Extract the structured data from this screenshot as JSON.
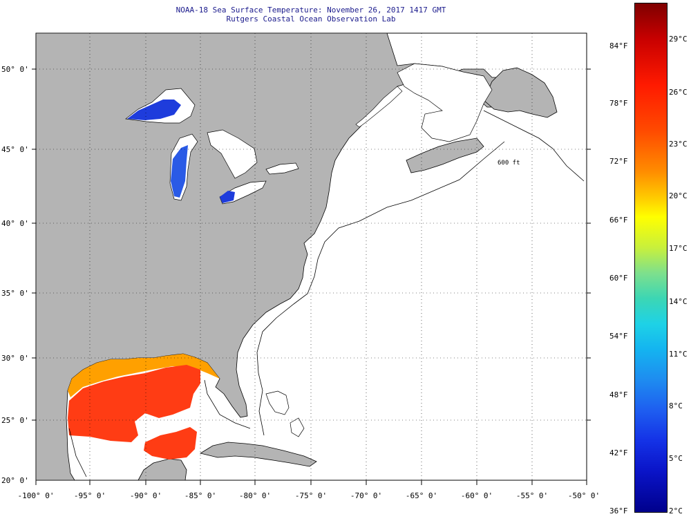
{
  "title": {
    "line1": "NOAA-18 Sea Surface Temperature:  November 26, 2017 1417 GMT",
    "line2": "Rutgers Coastal Ocean Observation Lab"
  },
  "lat_labels": [
    "50° 0'",
    "45° 0'",
    "40° 0'",
    "35° 0'",
    "30° 0'",
    "25° 0'",
    "20° 0'"
  ],
  "lon_labels": [
    "-100° 0'",
    "-95° 0'",
    "-90° 0'",
    "-85° 0'",
    "-80° 0'",
    "-75° 0'",
    "-70° 0'",
    "-65° 0'",
    "-60° 0'",
    "-55° 0'",
    "-50° 0'"
  ],
  "colorbar": {
    "fahrenheit": [
      "84°F",
      "78°F",
      "72°F",
      "66°F",
      "60°F",
      "54°F",
      "48°F",
      "42°F",
      "36°F"
    ],
    "celsius": [
      "29°C",
      "26°C",
      "23°C",
      "20°C",
      "17°C",
      "14°C",
      "11°C",
      "8°C",
      "5°C",
      "2°C"
    ]
  },
  "contour_label": "600 ft",
  "colors": {
    "land": "#b4b4b4",
    "ocean_no_data": "#ffffff",
    "title_text": "#1a1a8c",
    "gulf_warm": "#ff3c14",
    "gulf_coastal": "#ffa000",
    "lakes": "#1e3cdc"
  }
}
